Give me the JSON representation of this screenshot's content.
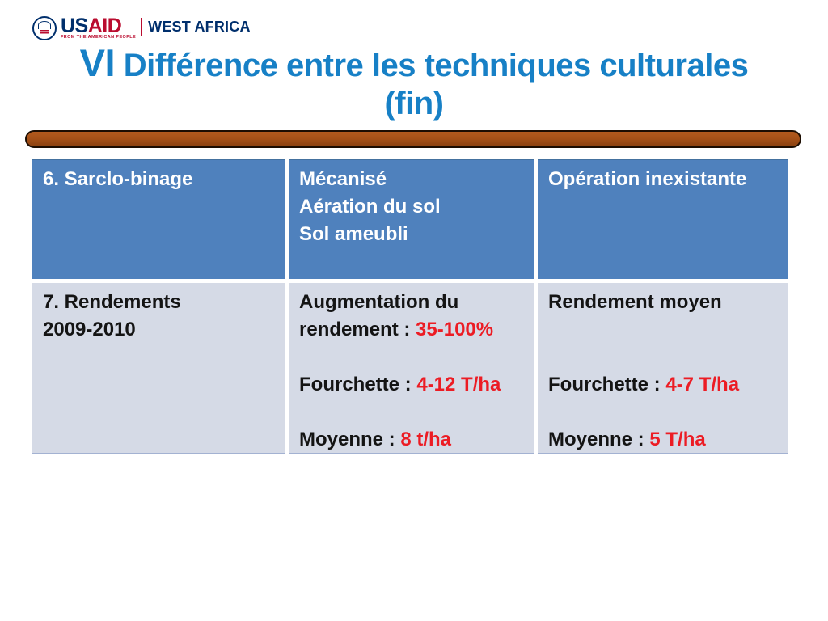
{
  "colors": {
    "usaid_navy": "#002F6C",
    "usaid_red": "#BA0C2F",
    "title_blue": "#1780C6",
    "divider_brown": "#A65118",
    "header_bg": "#4F81BD",
    "body_bg": "#D5DAE6",
    "accent_red": "#EC1C24",
    "text_dark": "#141414"
  },
  "logo": {
    "brand_us": "US",
    "brand_aid": "AID",
    "tagline": "FROM THE AMERICAN PEOPLE",
    "region": "WEST AFRICA"
  },
  "title": {
    "numeral": "VI",
    "line1": "Différence entre les techniques culturales",
    "line2": "(fin)"
  },
  "table": {
    "rows": [
      {
        "style": "header",
        "cells": [
          [
            [
              "6. Sarclo-binage"
            ]
          ],
          [
            [
              "Mécanisé"
            ],
            [
              "Aération du sol"
            ],
            [
              "Sol ameubli"
            ]
          ],
          [
            [
              "Opération inexistante"
            ]
          ]
        ]
      },
      {
        "style": "body",
        "cells": [
          [
            [
              "7. Rendements"
            ],
            [
              "2009-2010"
            ]
          ],
          [
            [
              "Augmentation du"
            ],
            [
              {
                "t": "rendement : "
              },
              {
                "t": "35-100%",
                "red": true
              }
            ],
            [],
            [
              {
                "t": "Fourchette : "
              },
              {
                "t": "4-12 T/ha",
                "red": true
              }
            ],
            [],
            [
              {
                "t": "Moyenne : "
              },
              {
                "t": "8 t/ha",
                "red": true
              }
            ]
          ],
          [
            [
              "Rendement moyen"
            ],
            [],
            [],
            [
              {
                "t": "Fourchette : "
              },
              {
                "t": "4-7 T/ha",
                "red": true
              }
            ],
            [],
            [
              {
                "t": "Moyenne : "
              },
              {
                "t": "5 T/ha",
                "red": true
              }
            ]
          ]
        ]
      }
    ]
  }
}
